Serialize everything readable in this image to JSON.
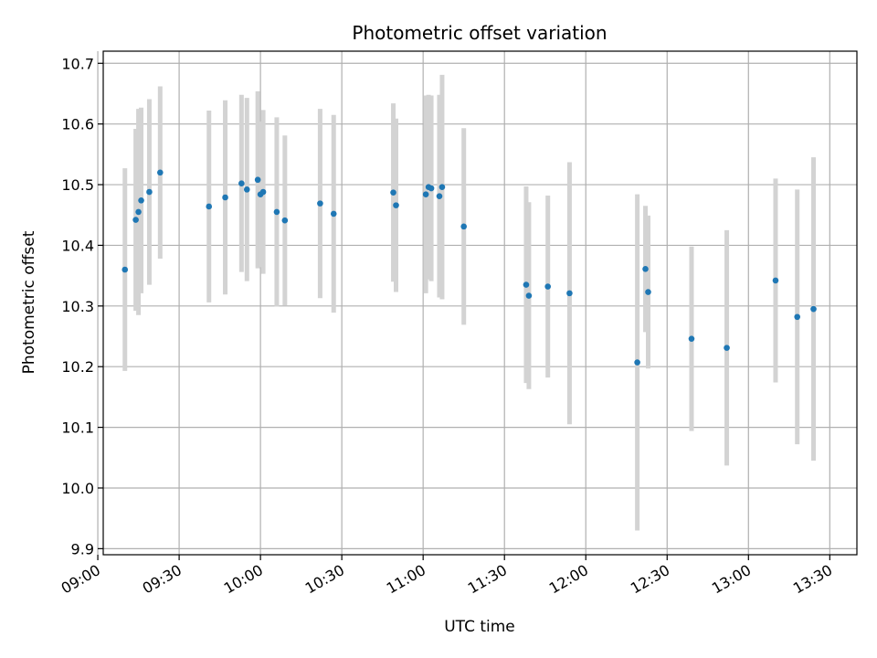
{
  "chart_data": {
    "type": "scatter",
    "title": "Photometric offset variation",
    "xlabel": "UTC time",
    "ylabel": "Photometric offset",
    "xlim": [
      "09:02",
      "13:40"
    ],
    "ylim": [
      9.89,
      10.72
    ],
    "grid": true,
    "x_ticks": [
      "09:00",
      "09:30",
      "10:00",
      "10:30",
      "11:00",
      "11:30",
      "12:00",
      "12:30",
      "13:00",
      "13:30"
    ],
    "y_ticks": [
      9.9,
      10.0,
      10.1,
      10.2,
      10.3,
      10.4,
      10.5,
      10.6,
      10.7
    ],
    "y_tick_labels": [
      "9.9",
      "10.0",
      "10.1",
      "10.2",
      "10.3",
      "10.4",
      "10.5",
      "10.6",
      "10.7"
    ],
    "marker_color": "#1f77b4",
    "errorbar_color": "#d3d3d3",
    "series": [
      {
        "points": [
          {
            "x": "09:10",
            "y": 10.36,
            "yerr": 0.167
          },
          {
            "x": "09:14",
            "y": 10.442,
            "yerr": 0.15
          },
          {
            "x": "09:15",
            "y": 10.455,
            "yerr": 0.17
          },
          {
            "x": "09:16",
            "y": 10.474,
            "yerr": 0.153
          },
          {
            "x": "09:19",
            "y": 10.488,
            "yerr": 0.153
          },
          {
            "x": "09:23",
            "y": 10.52,
            "yerr": 0.142
          },
          {
            "x": "09:41",
            "y": 10.464,
            "yerr": 0.158
          },
          {
            "x": "09:47",
            "y": 10.479,
            "yerr": 0.16
          },
          {
            "x": "09:53",
            "y": 10.502,
            "yerr": 0.146
          },
          {
            "x": "09:55",
            "y": 10.492,
            "yerr": 0.151
          },
          {
            "x": "09:59",
            "y": 10.508,
            "yerr": 0.146
          },
          {
            "x": "10:00",
            "y": 10.484,
            "yerr": 0.12
          },
          {
            "x": "10:01",
            "y": 10.488,
            "yerr": 0.135
          },
          {
            "x": "10:06",
            "y": 10.455,
            "yerr": 0.156
          },
          {
            "x": "10:09",
            "y": 10.441,
            "yerr": 0.14
          },
          {
            "x": "10:22",
            "y": 10.469,
            "yerr": 0.156
          },
          {
            "x": "10:27",
            "y": 10.452,
            "yerr": 0.163
          },
          {
            "x": "10:49",
            "y": 10.487,
            "yerr": 0.147
          },
          {
            "x": "10:50",
            "y": 10.466,
            "yerr": 0.143
          },
          {
            "x": "11:01",
            "y": 10.484,
            "yerr": 0.163
          },
          {
            "x": "11:02",
            "y": 10.496,
            "yerr": 0.152
          },
          {
            "x": "11:03",
            "y": 10.494,
            "yerr": 0.153
          },
          {
            "x": "11:06",
            "y": 10.481,
            "yerr": 0.167
          },
          {
            "x": "11:07",
            "y": 10.496,
            "yerr": 0.185
          },
          {
            "x": "11:15",
            "y": 10.431,
            "yerr": 0.162
          },
          {
            "x": "11:38",
            "y": 10.335,
            "yerr": 0.162
          },
          {
            "x": "11:39",
            "y": 10.317,
            "yerr": 0.154
          },
          {
            "x": "11:46",
            "y": 10.332,
            "yerr": 0.15
          },
          {
            "x": "11:54",
            "y": 10.321,
            "yerr": 0.216
          },
          {
            "x": "12:19",
            "y": 10.207,
            "yerr": 0.277
          },
          {
            "x": "12:22",
            "y": 10.361,
            "yerr": 0.104
          },
          {
            "x": "12:23",
            "y": 10.323,
            "yerr": 0.126
          },
          {
            "x": "12:39",
            "y": 10.246,
            "yerr": 0.152
          },
          {
            "x": "12:52",
            "y": 10.231,
            "yerr": 0.194
          },
          {
            "x": "13:10",
            "y": 10.342,
            "yerr": 0.168
          },
          {
            "x": "13:18",
            "y": 10.282,
            "yerr": 0.21
          },
          {
            "x": "13:24",
            "y": 10.295,
            "yerr": 0.25
          }
        ]
      }
    ]
  }
}
